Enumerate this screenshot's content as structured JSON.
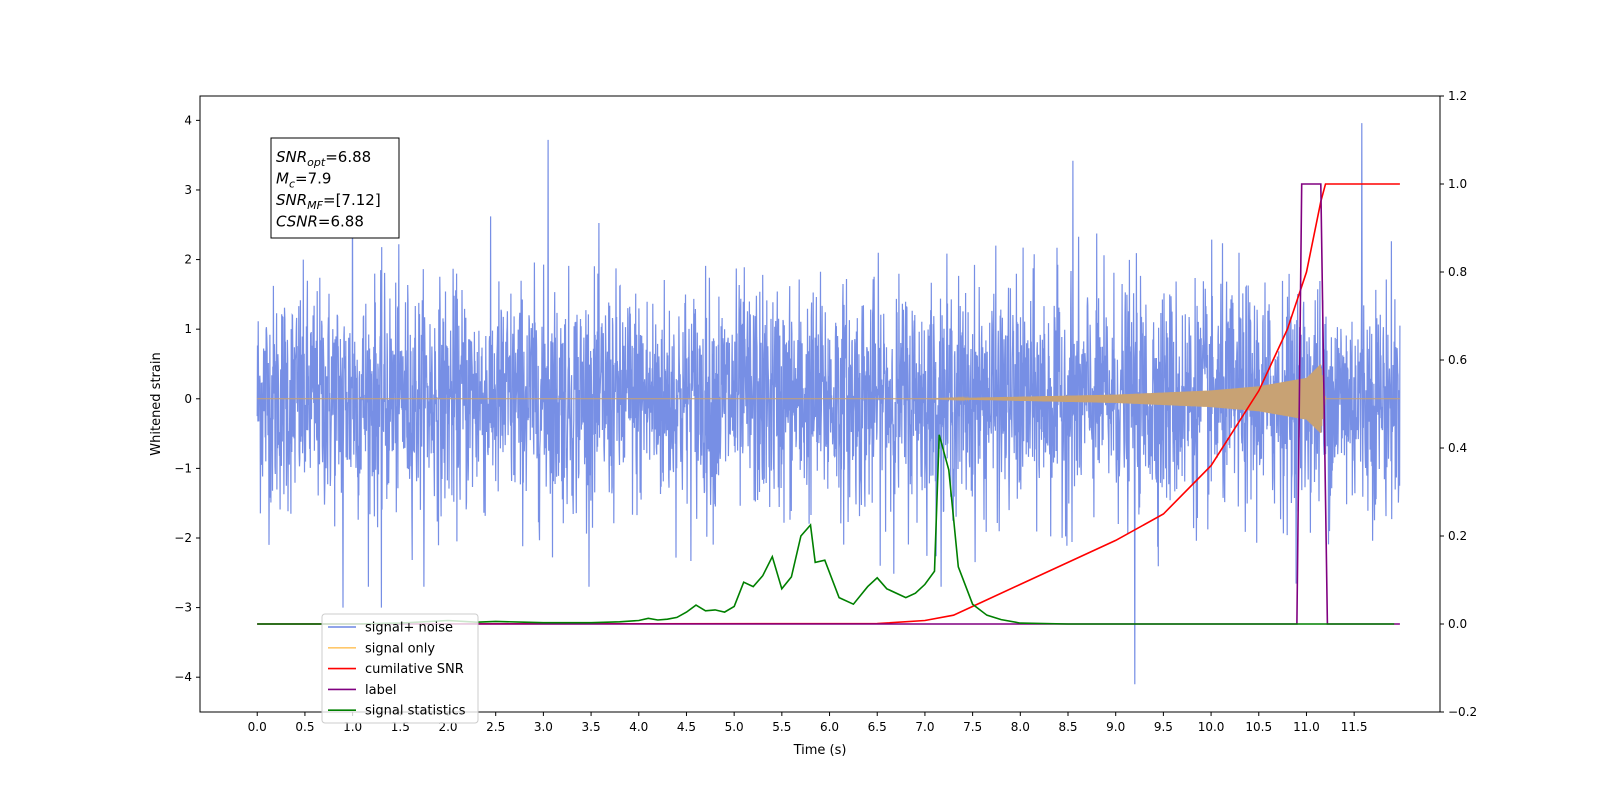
{
  "chart_data": {
    "type": "line",
    "xlabel": "Time (s)",
    "ylabel_left": "Whitened strain",
    "xlim": [
      -0.6,
      12.4
    ],
    "ylim_left": [
      -4.5,
      4.35
    ],
    "ylim_right": [
      -0.2,
      1.2
    ],
    "x_ticks": [
      0.0,
      0.5,
      1.0,
      1.5,
      2.0,
      2.5,
      3.0,
      3.5,
      4.0,
      4.5,
      5.0,
      5.5,
      6.0,
      6.5,
      7.0,
      7.5,
      8.0,
      8.5,
      9.0,
      9.5,
      10.0,
      10.5,
      11.0,
      11.5
    ],
    "x_tick_labels": [
      "0.0",
      "0.5",
      "1.0",
      "1.5",
      "2.0",
      "2.5",
      "3.0",
      "3.5",
      "4.0",
      "4.5",
      "5.0",
      "5.5",
      "6.0",
      "6.5",
      "7.0",
      "7.5",
      "8.0",
      "8.5",
      "9.0",
      "9.5",
      "10.0",
      "10.5",
      "11.0",
      "11.5"
    ],
    "y_left_ticks": [
      4,
      3,
      2,
      1,
      0,
      -1,
      -2,
      -3,
      -4
    ],
    "y_left_tick_labels": [
      "4",
      "3",
      "2",
      "1",
      "0",
      "−1",
      "−2",
      "−3",
      "−4"
    ],
    "y_right_ticks": [
      1.2,
      1.0,
      0.8,
      0.6,
      0.4,
      0.2,
      0.0,
      -0.2
    ],
    "y_right_tick_labels": [
      "1.2",
      "1.0",
      "0.8",
      "0.6",
      "0.4",
      "0.2",
      "0.0",
      "−0.2"
    ],
    "info_box": [
      {
        "main": "SNR",
        "sub": "opt",
        "rest": "=6.88"
      },
      {
        "main": "M",
        "sub": "c",
        "rest": "=7.9"
      },
      {
        "main": "SNR",
        "sub": "MF",
        "rest": "=[7.12]"
      },
      {
        "main": "CSNR",
        "sub": "",
        "rest": "=6.88"
      }
    ],
    "legend": [
      {
        "label": "signal+ noise",
        "color": "#6b86e3"
      },
      {
        "label": "signal only",
        "color": "#ffc86b"
      },
      {
        "label": "cumilative SNR",
        "color": "#ff0000"
      },
      {
        "label": "label",
        "color": "#800080"
      },
      {
        "label": "signal statistics",
        "color": "#008000"
      }
    ],
    "series": [
      {
        "name": "signal+ noise",
        "axis": "left",
        "color": "#6b86e3",
        "description_stats": {
          "x_start": 0.0,
          "x_end": 11.98,
          "std": 0.8,
          "typical_min": -2.0,
          "typical_max": 2.0
        },
        "spikes": [
          [
            1.0,
            3.2
          ],
          [
            3.05,
            3.72
          ],
          [
            8.55,
            3.42
          ],
          [
            11.58,
            3.96
          ],
          [
            0.9,
            -3.0
          ],
          [
            1.3,
            -3.0
          ],
          [
            9.2,
            -4.1
          ]
        ]
      },
      {
        "name": "signal only",
        "axis": "left",
        "color": "#c8a274",
        "envelope": [
          [
            0.0,
            0.0
          ],
          [
            7.0,
            0.0
          ],
          [
            8.0,
            0.03
          ],
          [
            9.0,
            0.06
          ],
          [
            10.0,
            0.12
          ],
          [
            10.5,
            0.18
          ],
          [
            11.0,
            0.3
          ],
          [
            11.15,
            0.5
          ],
          [
            11.2,
            0.0
          ],
          [
            11.98,
            0.0
          ]
        ]
      },
      {
        "name": "cumilative SNR",
        "axis": "right",
        "color": "#ff0000",
        "points": [
          [
            0.0,
            0.0
          ],
          [
            6.5,
            0.001
          ],
          [
            7.0,
            0.008
          ],
          [
            7.3,
            0.02
          ],
          [
            7.6,
            0.05
          ],
          [
            8.0,
            0.09
          ],
          [
            8.5,
            0.14
          ],
          [
            9.0,
            0.19
          ],
          [
            9.5,
            0.25
          ],
          [
            10.0,
            0.36
          ],
          [
            10.5,
            0.53
          ],
          [
            10.8,
            0.67
          ],
          [
            11.0,
            0.8
          ],
          [
            11.15,
            0.96
          ],
          [
            11.2,
            1.0
          ],
          [
            11.98,
            1.0
          ]
        ]
      },
      {
        "name": "label",
        "axis": "right",
        "color": "#800080",
        "points": [
          [
            0.0,
            0.0
          ],
          [
            10.9,
            0.0
          ],
          [
            10.95,
            1.0
          ],
          [
            11.15,
            1.0
          ],
          [
            11.22,
            0.0
          ],
          [
            11.98,
            0.0
          ]
        ]
      },
      {
        "name": "signal statistics",
        "axis": "right",
        "color": "#008000",
        "points": [
          [
            0.0,
            0.0
          ],
          [
            0.5,
            0.0
          ],
          [
            1.0,
            0.0
          ],
          [
            1.5,
            0.002
          ],
          [
            2.0,
            0.008
          ],
          [
            2.3,
            0.004
          ],
          [
            2.5,
            0.006
          ],
          [
            2.8,
            0.004
          ],
          [
            3.0,
            0.003
          ],
          [
            3.5,
            0.003
          ],
          [
            3.8,
            0.005
          ],
          [
            4.0,
            0.008
          ],
          [
            4.1,
            0.013
          ],
          [
            4.2,
            0.009
          ],
          [
            4.3,
            0.011
          ],
          [
            4.4,
            0.015
          ],
          [
            4.5,
            0.027
          ],
          [
            4.6,
            0.043
          ],
          [
            4.7,
            0.03
          ],
          [
            4.8,
            0.032
          ],
          [
            4.9,
            0.027
          ],
          [
            5.0,
            0.04
          ],
          [
            5.1,
            0.095
          ],
          [
            5.2,
            0.085
          ],
          [
            5.3,
            0.11
          ],
          [
            5.4,
            0.153
          ],
          [
            5.5,
            0.08
          ],
          [
            5.6,
            0.107
          ],
          [
            5.7,
            0.2
          ],
          [
            5.8,
            0.225
          ],
          [
            5.85,
            0.14
          ],
          [
            5.95,
            0.145
          ],
          [
            6.1,
            0.06
          ],
          [
            6.25,
            0.045
          ],
          [
            6.4,
            0.085
          ],
          [
            6.5,
            0.105
          ],
          [
            6.6,
            0.08
          ],
          [
            6.8,
            0.06
          ],
          [
            6.9,
            0.07
          ],
          [
            7.0,
            0.09
          ],
          [
            7.1,
            0.12
          ],
          [
            7.15,
            0.43
          ],
          [
            7.25,
            0.35
          ],
          [
            7.35,
            0.13
          ],
          [
            7.5,
            0.045
          ],
          [
            7.65,
            0.02
          ],
          [
            7.8,
            0.01
          ],
          [
            8.0,
            0.002
          ],
          [
            8.5,
            0.0
          ],
          [
            11.92,
            0.0
          ]
        ]
      }
    ]
  }
}
